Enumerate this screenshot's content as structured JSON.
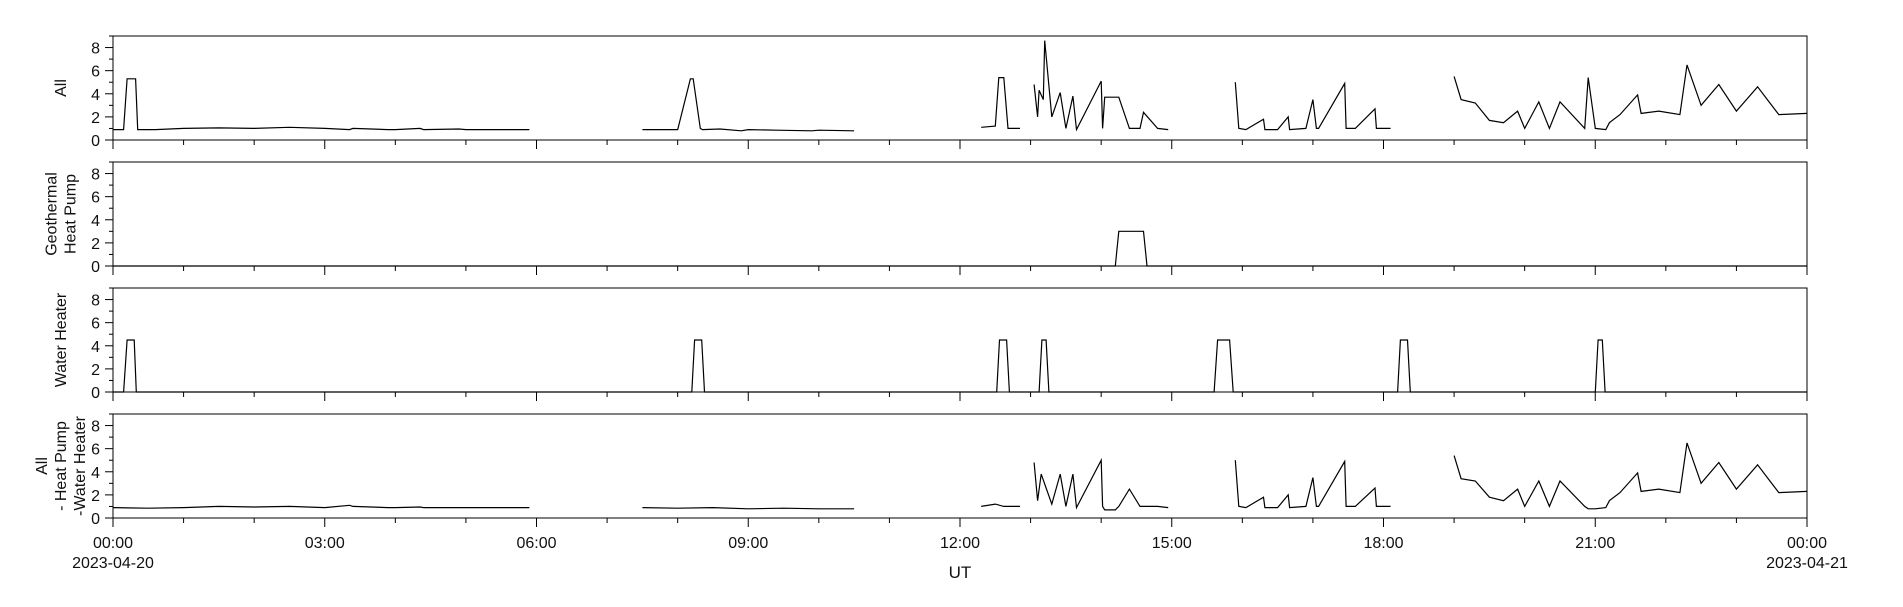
{
  "chart_data": {
    "type": "line",
    "xlabel": "UT",
    "x_range": [
      "2023-04-20 00:00",
      "2023-04-21 00:00"
    ],
    "x_tick_labels": [
      "00:00",
      "03:00",
      "06:00",
      "09:00",
      "12:00",
      "15:00",
      "18:00",
      "21:00",
      "00:00"
    ],
    "x_tick_hours": [
      0,
      3,
      6,
      9,
      12,
      15,
      18,
      21,
      24
    ],
    "x_date_labels": {
      "start": "2023-04-20",
      "end": "2023-04-21"
    },
    "x_minor_tick_step_hours": 1,
    "line_color": "#000000",
    "panels": [
      {
        "ylabel": [
          "All"
        ],
        "ylim": [
          0,
          9
        ],
        "yticks": [
          0,
          2,
          4,
          6,
          8
        ],
        "x": [
          0.0,
          0.15,
          0.2,
          0.32,
          0.35,
          0.6,
          1.0,
          1.5,
          2.0,
          2.5,
          3.0,
          3.35,
          3.4,
          3.9,
          4.0,
          4.35,
          4.4,
          4.9,
          5.0,
          5.35,
          5.4,
          5.9,
          6.0,
          7.0,
          7.5,
          8.0,
          8.18,
          8.22,
          8.32,
          8.35,
          8.6,
          8.9,
          9.0,
          9.4,
          9.9,
          10.0,
          10.5,
          11.0,
          12.0,
          12.3,
          12.5,
          12.55,
          12.62,
          12.68,
          12.85,
          13.0,
          13.05,
          13.1,
          13.12,
          13.18,
          13.2,
          13.3,
          13.42,
          13.5,
          13.6,
          13.65,
          14.0,
          14.02,
          14.05,
          14.1,
          14.25,
          14.4,
          14.55,
          14.6,
          14.8,
          14.95,
          15.0,
          15.9,
          15.95,
          16.05,
          16.3,
          16.32,
          16.5,
          16.65,
          16.67,
          16.9,
          17.0,
          17.05,
          17.08,
          17.45,
          17.47,
          17.6,
          17.88,
          17.9,
          18.1,
          18.5,
          18.9,
          19.0,
          19.1,
          19.3,
          19.5,
          19.7,
          19.9,
          20.0,
          20.2,
          20.35,
          20.5,
          20.85,
          20.9,
          21.0,
          21.15,
          21.2,
          21.35,
          21.6,
          21.65,
          21.9,
          22.2,
          22.3,
          22.5,
          22.75,
          23.0,
          23.3,
          23.45,
          23.6,
          24.0
        ],
        "y": [
          0.9,
          0.9,
          5.3,
          5.3,
          0.9,
          0.9,
          1.0,
          1.05,
          1.0,
          1.1,
          1.0,
          0.9,
          1.0,
          0.9,
          0.9,
          1.0,
          0.9,
          0.95,
          0.9,
          0.9,
          0.9,
          0.9,
          null,
          null,
          0.9,
          0.9,
          5.3,
          5.3,
          1.0,
          0.9,
          0.95,
          0.8,
          0.9,
          0.85,
          0.8,
          0.85,
          0.8,
          null,
          null,
          1.1,
          1.2,
          5.4,
          5.4,
          1.0,
          1.0,
          null,
          4.8,
          2.0,
          4.3,
          3.5,
          8.6,
          2.0,
          4.1,
          1.0,
          3.8,
          0.9,
          5.1,
          1.0,
          3.7,
          3.7,
          3.7,
          1.0,
          1.0,
          2.4,
          1.0,
          0.9,
          null,
          5.0,
          1.0,
          0.9,
          1.8,
          0.9,
          0.9,
          2.0,
          0.9,
          1.0,
          3.5,
          1.0,
          1.0,
          4.9,
          1.0,
          1.0,
          2.7,
          1.0,
          1.0,
          null,
          null,
          5.5,
          3.5,
          3.2,
          1.7,
          1.5,
          2.5,
          1.0,
          3.3,
          1.0,
          3.3,
          1.0,
          5.4,
          1.0,
          0.9,
          1.5,
          2.2,
          3.9,
          2.3,
          2.5,
          2.2,
          6.5,
          3.0,
          4.8,
          2.5,
          4.6,
          3.4,
          2.2,
          2.3
        ]
      },
      {
        "ylabel": [
          "Geothermal",
          "Heat Pump"
        ],
        "ylim": [
          0,
          9
        ],
        "yticks": [
          0,
          2,
          4,
          6,
          8
        ],
        "x": [
          0.0,
          14.2,
          14.25,
          14.6,
          14.65,
          24.0
        ],
        "y": [
          0.0,
          0.0,
          3.0,
          3.0,
          0.0,
          0.0
        ]
      },
      {
        "ylabel": [
          "Water Heater"
        ],
        "ylim": [
          0,
          9
        ],
        "yticks": [
          0,
          2,
          4,
          6,
          8
        ],
        "x": [
          0.0,
          0.15,
          0.2,
          0.3,
          0.33,
          8.2,
          8.24,
          8.34,
          8.38,
          12.52,
          12.56,
          12.66,
          12.7,
          13.12,
          13.16,
          13.22,
          13.26,
          15.6,
          15.65,
          15.82,
          15.87,
          18.2,
          18.24,
          18.34,
          18.38,
          21.0,
          21.04,
          21.1,
          21.14,
          24.0
        ],
        "y": [
          0.0,
          0.0,
          4.5,
          4.5,
          0.0,
          0.0,
          4.5,
          4.5,
          0.0,
          0.0,
          4.5,
          4.5,
          0.0,
          0.0,
          4.5,
          4.5,
          0.0,
          0.0,
          4.5,
          4.5,
          0.0,
          0.0,
          4.5,
          4.5,
          0.0,
          0.0,
          4.5,
          4.5,
          0.0,
          0.0
        ]
      },
      {
        "ylabel": [
          "All",
          "- Heat Pump",
          "-Water Heater"
        ],
        "ylim": [
          0,
          9
        ],
        "yticks": [
          0,
          2,
          4,
          6,
          8
        ],
        "x": [
          0.0,
          0.5,
          1.0,
          1.5,
          2.0,
          2.5,
          3.0,
          3.35,
          3.4,
          3.9,
          4.0,
          4.35,
          4.4,
          4.9,
          5.0,
          5.35,
          5.4,
          5.9,
          6.0,
          7.0,
          7.5,
          8.0,
          8.5,
          9.0,
          9.5,
          10.0,
          10.5,
          11.0,
          12.0,
          12.3,
          12.5,
          12.62,
          12.85,
          13.0,
          13.05,
          13.1,
          13.15,
          13.3,
          13.42,
          13.5,
          13.6,
          13.65,
          14.0,
          14.02,
          14.05,
          14.2,
          14.25,
          14.4,
          14.55,
          14.6,
          14.8,
          14.95,
          15.0,
          15.9,
          15.95,
          16.05,
          16.3,
          16.32,
          16.5,
          16.65,
          16.67,
          16.9,
          17.0,
          17.05,
          17.08,
          17.45,
          17.47,
          17.6,
          17.88,
          17.9,
          18.1,
          18.5,
          18.9,
          19.0,
          19.1,
          19.3,
          19.5,
          19.7,
          19.9,
          20.0,
          20.2,
          20.35,
          20.5,
          20.85,
          20.9,
          21.0,
          21.15,
          21.2,
          21.35,
          21.6,
          21.65,
          21.9,
          22.2,
          22.3,
          22.5,
          22.75,
          23.0,
          23.3,
          23.45,
          23.6,
          24.0
        ],
        "y": [
          0.9,
          0.85,
          0.9,
          1.0,
          0.95,
          1.0,
          0.9,
          1.1,
          1.0,
          0.9,
          0.9,
          0.95,
          0.9,
          0.9,
          0.9,
          0.9,
          0.9,
          0.9,
          null,
          null,
          0.9,
          0.85,
          0.9,
          0.8,
          0.85,
          0.8,
          0.8,
          null,
          null,
          1.0,
          1.2,
          1.0,
          1.0,
          null,
          4.8,
          1.5,
          3.8,
          1.2,
          3.8,
          1.0,
          3.8,
          0.9,
          5.0,
          1.0,
          0.7,
          0.7,
          1.0,
          2.5,
          1.0,
          1.0,
          1.0,
          0.9,
          null,
          5.0,
          1.0,
          0.9,
          1.8,
          0.9,
          0.9,
          2.0,
          0.9,
          1.0,
          3.5,
          1.0,
          1.0,
          4.9,
          1.0,
          1.0,
          2.6,
          1.0,
          1.0,
          null,
          null,
          5.4,
          3.4,
          3.2,
          1.8,
          1.5,
          2.5,
          1.0,
          3.2,
          1.0,
          3.2,
          1.0,
          0.8,
          0.8,
          0.9,
          1.5,
          2.2,
          3.9,
          2.3,
          2.5,
          2.2,
          6.5,
          3.0,
          4.8,
          2.5,
          4.6,
          3.4,
          2.2,
          2.3
        ]
      }
    ]
  }
}
